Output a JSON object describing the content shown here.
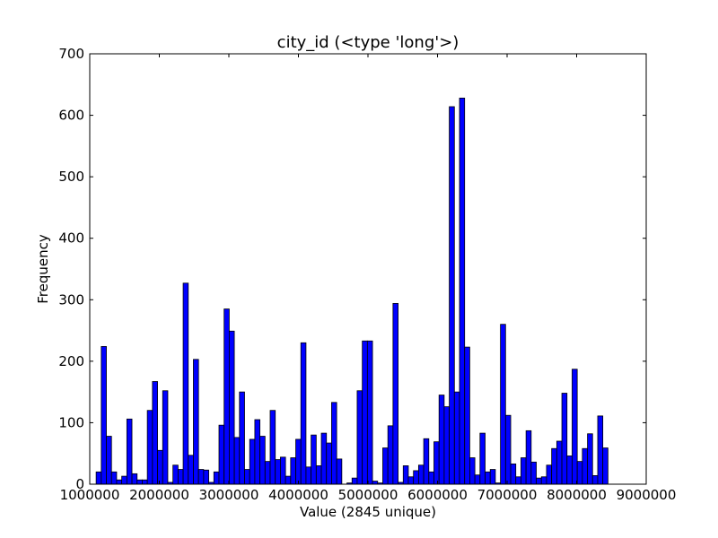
{
  "chart_data": {
    "type": "bar",
    "title": "city_id (<type 'long'>)",
    "xlabel": "Value (2845 unique)",
    "ylabel": "Frequency",
    "xlim": [
      1000000,
      9000000
    ],
    "ylim": [
      0,
      700
    ],
    "xticks": [
      1000000,
      2000000,
      3000000,
      4000000,
      5000000,
      6000000,
      7000000,
      8000000,
      9000000
    ],
    "yticks": [
      0,
      100,
      200,
      300,
      400,
      500,
      600,
      700
    ],
    "xtick_labels": [
      "1000000",
      "2000000",
      "3000000",
      "4000000",
      "5000000",
      "6000000",
      "7000000",
      "8000000",
      "9000000"
    ],
    "ytick_labels": [
      "0",
      "100",
      "200",
      "300",
      "400",
      "500",
      "600",
      "700"
    ],
    "bin_start": 1092000,
    "bin_width": 73580,
    "values": [
      20,
      224,
      78,
      20,
      7,
      13,
      106,
      17,
      7,
      7,
      120,
      167,
      55,
      152,
      3,
      31,
      24,
      327,
      47,
      203,
      24,
      23,
      3,
      20,
      96,
      285,
      249,
      76,
      150,
      24,
      73,
      105,
      78,
      37,
      120,
      40,
      44,
      13,
      43,
      73,
      230,
      28,
      80,
      30,
      83,
      67,
      133,
      41,
      0,
      2,
      10,
      152,
      233,
      233,
      5,
      2,
      59,
      95,
      294,
      3,
      30,
      12,
      22,
      31,
      74,
      20,
      69,
      145,
      126,
      614,
      150,
      628,
      223,
      43,
      15,
      83,
      20,
      24,
      2,
      260,
      112,
      33,
      12,
      43,
      87,
      36,
      10,
      12,
      31,
      58,
      70,
      148,
      46,
      187,
      37,
      58,
      82,
      14,
      111,
      59
    ],
    "bar_color": "#0000ff",
    "bar_edge_color": "#000000",
    "grid": false
  }
}
